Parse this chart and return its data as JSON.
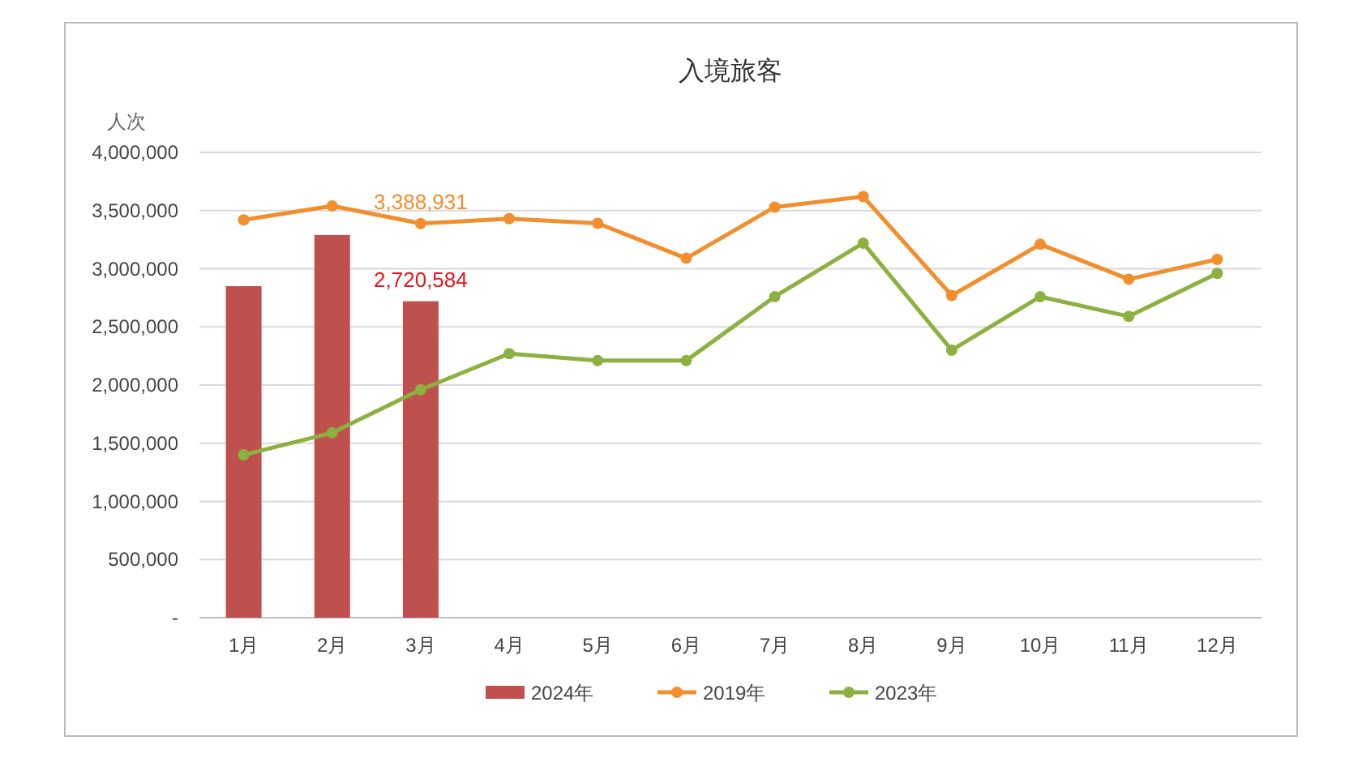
{
  "chart_data": {
    "type": "bar",
    "title": "入境旅客",
    "ylabel": "人次",
    "categories": [
      "1月",
      "2月",
      "3月",
      "4月",
      "5月",
      "6月",
      "7月",
      "8月",
      "9月",
      "10月",
      "11月",
      "12月"
    ],
    "series": [
      {
        "name": "2024年",
        "color": "#c0504d",
        "values": [
          2850000,
          3290000,
          2720584,
          null,
          null,
          null,
          null,
          null,
          null,
          null,
          null,
          null
        ],
        "value_labels": [
          null,
          null,
          "2,720,584",
          null,
          null,
          null,
          null,
          null,
          null,
          null,
          null,
          null
        ]
      },
      {
        "name": "2019年",
        "type": "line",
        "color": "#f28e2b",
        "values": [
          3420000,
          3540000,
          3388931,
          3430000,
          3390000,
          3090000,
          3530000,
          3620000,
          2770000,
          3210000,
          2910000,
          3080000
        ],
        "value_labels": [
          null,
          null,
          "3,388,931",
          null,
          null,
          null,
          null,
          null,
          null,
          null,
          null,
          null
        ]
      },
      {
        "name": "2023年",
        "type": "line",
        "color": "#8cb140",
        "values": [
          1400000,
          1590000,
          1960000,
          2270000,
          2210000,
          2210000,
          2760000,
          3220000,
          2300000,
          2760000,
          2590000,
          2960000
        ]
      }
    ],
    "ylim": [
      0,
      4000000
    ],
    "yticks": [
      {
        "value": 0,
        "label": "-"
      },
      {
        "value": 500000,
        "label": "500,000"
      },
      {
        "value": 1000000,
        "label": "1,000,000"
      },
      {
        "value": 1500000,
        "label": "1,500,000"
      },
      {
        "value": 2000000,
        "label": "2,000,000"
      },
      {
        "value": 2500000,
        "label": "2,500,000"
      },
      {
        "value": 3000000,
        "label": "3,000,000"
      },
      {
        "value": 3500000,
        "label": "3,500,000"
      },
      {
        "value": 4000000,
        "label": "4,000,000"
      }
    ],
    "grid": "y",
    "legend": "bottom",
    "marker": "circle",
    "line_style": "solid"
  }
}
